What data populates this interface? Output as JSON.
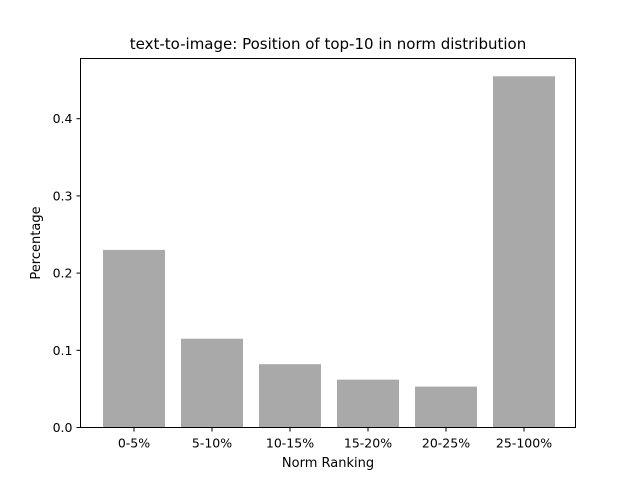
{
  "chart_data": {
    "type": "bar",
    "title": "text-to-image: Position of top-10 in norm distribution",
    "xlabel": "Norm Ranking",
    "ylabel": "Percentage",
    "categories": [
      "0-5%",
      "5-10%",
      "10-15%",
      "15-20%",
      "20-25%",
      "25-100%"
    ],
    "values": [
      0.23,
      0.115,
      0.082,
      0.062,
      0.053,
      0.455
    ],
    "ylim": [
      0,
      0.478
    ],
    "yticks": [
      "0.0",
      "0.1",
      "0.2",
      "0.3",
      "0.4"
    ],
    "bar_color": "#a9a9a9",
    "grid": false
  }
}
